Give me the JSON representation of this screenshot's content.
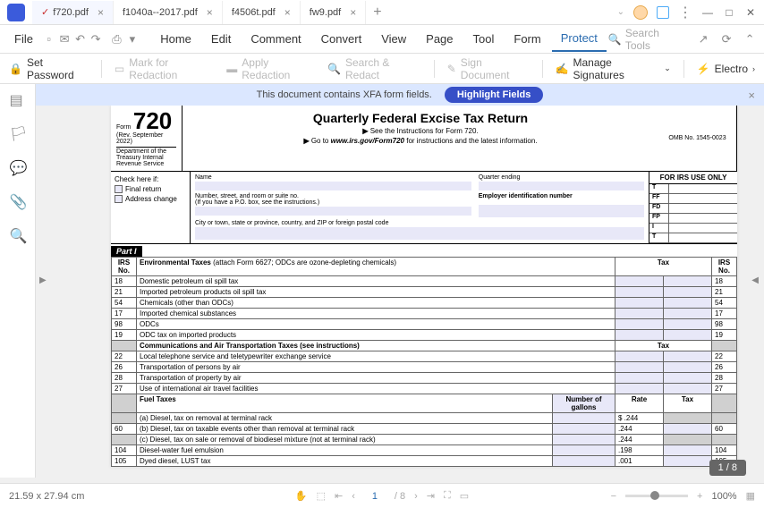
{
  "tabs": [
    {
      "label": "f720.pdf",
      "active": true
    },
    {
      "label": "f1040a--2017.pdf",
      "active": false
    },
    {
      "label": "f4506t.pdf",
      "active": false
    },
    {
      "label": "fw9.pdf",
      "active": false
    }
  ],
  "menu": {
    "file": "File",
    "items": [
      "Home",
      "Edit",
      "Comment",
      "Convert",
      "View",
      "Page",
      "Tool",
      "Form",
      "Protect"
    ],
    "active": "Protect",
    "search": "Search Tools"
  },
  "toolbar": {
    "set_password": "Set Password",
    "mark_redaction": "Mark for Redaction",
    "apply_redaction": "Apply Redaction",
    "search_redact": "Search & Redact",
    "sign_document": "Sign Document",
    "manage_sigs": "Manage Signatures",
    "electronic": "Electro"
  },
  "banner": {
    "text": "This document contains XFA form fields.",
    "button": "Highlight Fields"
  },
  "form": {
    "number": "720",
    "form_label": "Form",
    "rev": "(Rev. September 2022)",
    "dept": "Department of the Treasury Internal Revenue Service",
    "title": "Quarterly Federal Excise Tax Return",
    "sub1": "See the Instructions for Form 720.",
    "sub2_pre": "Go to ",
    "sub2_link": "www.irs.gov/Form720",
    "sub2_post": " for instructions and the latest information.",
    "omb": "OMB No. 1545-0023",
    "check_here": "Check here if:",
    "final_return": "Final return",
    "address_change": "Address change",
    "name_label": "Name",
    "quarter_label": "Quarter ending",
    "addr_label": "Number, street, and room or suite no.",
    "addr_sub": "(If you have a P.O. box, see the instructions.)",
    "ein_label": "Employer identification number",
    "city_label": "City or town, state or province, country, and ZIP or foreign postal code",
    "irs_only": "FOR IRS USE ONLY",
    "irs_rows": [
      "T",
      "FF",
      "FD",
      "FP",
      "I",
      "T"
    ]
  },
  "part1": {
    "label": "Part I",
    "irs_no": "IRS No.",
    "tax": "Tax",
    "env_taxes": "Environmental Taxes",
    "env_sub": " (attach Form 6627; ODCs are ozone-depleting chemicals)",
    "rows_env": [
      {
        "no": "18",
        "desc": "Domestic petroleum oil spill tax",
        "no2": "18"
      },
      {
        "no": "21",
        "desc": "Imported petroleum products oil spill tax",
        "no2": "21"
      },
      {
        "no": "54",
        "desc": "Chemicals (other than ODCs)",
        "no2": "54"
      },
      {
        "no": "17",
        "desc": "Imported chemical substances",
        "no2": "17"
      },
      {
        "no": "98",
        "desc": "ODCs",
        "no2": "98"
      },
      {
        "no": "19",
        "desc": "ODC tax on imported products",
        "no2": "19"
      }
    ],
    "comm_taxes": "Communications and Air Transportation Taxes",
    "comm_sub": " (see instructions)",
    "rows_comm": [
      {
        "no": "22",
        "desc": "Local telephone service and teletypewriter exchange service",
        "no2": "22"
      },
      {
        "no": "26",
        "desc": "Transportation of persons by air",
        "no2": "26"
      },
      {
        "no": "28",
        "desc": "Transportation of property by air",
        "no2": "28"
      },
      {
        "no": "27",
        "desc": "Use of international air travel facilities",
        "no2": "27"
      }
    ],
    "fuel_taxes": "Fuel Taxes",
    "num_gallons": "Number of gallons",
    "rate": "Rate",
    "rows_fuel": [
      {
        "no": "",
        "desc": "(a)  Diesel, tax on removal at terminal rack",
        "rate": "$ .244",
        "no2": ""
      },
      {
        "no": "60",
        "desc": "(b)  Diesel, tax on taxable events other than removal at terminal rack",
        "rate": ".244",
        "no2": "60"
      },
      {
        "no": "",
        "desc": "(c)  Diesel, tax on sale or removal of biodiesel mixture\n(not at terminal rack)",
        "rate": ".244",
        "no2": ""
      },
      {
        "no": "104",
        "desc": "Diesel-water fuel emulsion",
        "rate": ".198",
        "no2": "104"
      },
      {
        "no": "105",
        "desc": "Dyed diesel, LUST tax",
        "rate": ".001",
        "no2": "105"
      }
    ]
  },
  "status": {
    "dims": "21.59 x 27.94 cm",
    "page": "1",
    "total": "/ 8",
    "zoom": "100%"
  },
  "page_indicator": "1 / 8"
}
